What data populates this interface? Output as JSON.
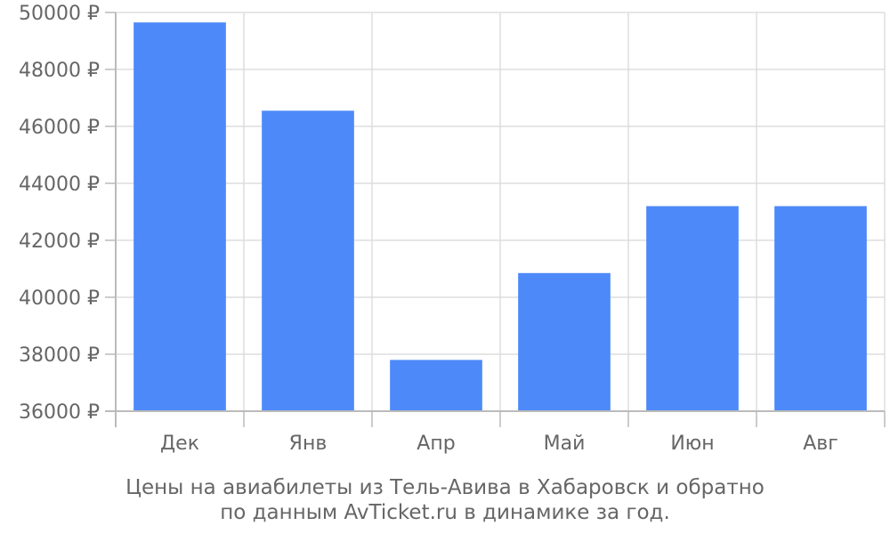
{
  "chart_data": {
    "type": "bar",
    "categories": [
      "Дек",
      "Янв",
      "Апр",
      "Май",
      "Июн",
      "Авг"
    ],
    "series": [
      {
        "values": [
          49650,
          46550,
          37800,
          40850,
          43200,
          43200
        ]
      }
    ],
    "ylim": [
      36000,
      50000
    ],
    "yticks": [
      36000,
      38000,
      40000,
      42000,
      44000,
      46000,
      48000,
      50000
    ],
    "ytick_labels": [
      "36000 ₽",
      "38000 ₽",
      "40000 ₽",
      "42000 ₽",
      "44000 ₽",
      "46000 ₽",
      "48000 ₽",
      "50000 ₽"
    ],
    "grid": true,
    "bar_color": "#4d89f9",
    "grid_color": "#dddddd",
    "axis_color": "#bbbbbb"
  },
  "caption": {
    "line1": "Цены на авиабилеты из Тель-Авива в Хабаровск и обратно",
    "line2": "по данным AvTicket.ru в динамике за год."
  }
}
